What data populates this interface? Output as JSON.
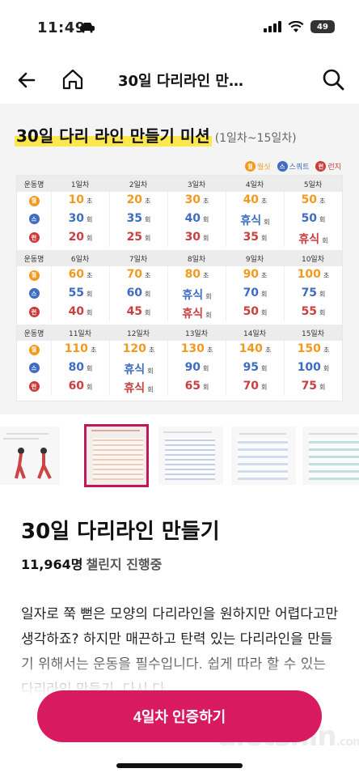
{
  "status_bar": {
    "time": "11:49",
    "battery": "49"
  },
  "nav": {
    "title": "30일 다리라인 만…",
    "icons": [
      "back-arrow-icon",
      "home-icon",
      "search-icon"
    ]
  },
  "image": {
    "title": "30일 다리 라인 만들기 미션",
    "range": "(1일차~15일차)",
    "legend": [
      {
        "badge": "월",
        "label": "월싯",
        "color": "#f39a1e"
      },
      {
        "badge": "스",
        "label": "스쿼트",
        "color": "#3e6cc1"
      },
      {
        "badge": "런",
        "label": "런지",
        "color": "#cc3a3a"
      }
    ],
    "header_label": "운동명",
    "row_badges": [
      "월",
      "스",
      "런"
    ],
    "blocks": [
      {
        "days": [
          {
            "label": "1일차",
            "vals": [
              [
                "10",
                "초"
              ],
              [
                "30",
                "회"
              ],
              [
                "20",
                "회"
              ]
            ]
          },
          {
            "label": "2일차",
            "vals": [
              [
                "20",
                "초"
              ],
              [
                "35",
                "회"
              ],
              [
                "25",
                "회"
              ]
            ]
          },
          {
            "label": "3일차",
            "vals": [
              [
                "30",
                "초"
              ],
              [
                "40",
                "회"
              ],
              [
                "30",
                "회"
              ]
            ]
          },
          {
            "label": "4일차",
            "vals": [
              [
                "40",
                "초"
              ],
              [
                "휴식",
                "회"
              ],
              [
                "35",
                "회"
              ]
            ]
          },
          {
            "label": "5일차",
            "vals": [
              [
                "50",
                "초"
              ],
              [
                "50",
                "회"
              ],
              [
                "휴식",
                "회"
              ]
            ]
          }
        ]
      },
      {
        "days": [
          {
            "label": "6일차",
            "vals": [
              [
                "60",
                "초"
              ],
              [
                "55",
                "회"
              ],
              [
                "40",
                "회"
              ]
            ]
          },
          {
            "label": "7일차",
            "vals": [
              [
                "70",
                "초"
              ],
              [
                "60",
                "회"
              ],
              [
                "45",
                "회"
              ]
            ]
          },
          {
            "label": "8일차",
            "vals": [
              [
                "80",
                "초"
              ],
              [
                "휴식",
                "회"
              ],
              [
                "휴식",
                "회"
              ]
            ]
          },
          {
            "label": "9일차",
            "vals": [
              [
                "90",
                "초"
              ],
              [
                "70",
                "회"
              ],
              [
                "50",
                "회"
              ]
            ]
          },
          {
            "label": "10일차",
            "vals": [
              [
                "100",
                "초"
              ],
              [
                "75",
                "회"
              ],
              [
                "55",
                "회"
              ]
            ]
          }
        ]
      },
      {
        "days": [
          {
            "label": "11일차",
            "vals": [
              [
                "110",
                "초"
              ],
              [
                "80",
                "회"
              ],
              [
                "60",
                "회"
              ]
            ]
          },
          {
            "label": "12일차",
            "vals": [
              [
                "120",
                "초"
              ],
              [
                "휴식",
                "회"
              ],
              [
                "휴식",
                "회"
              ]
            ]
          },
          {
            "label": "13일차",
            "vals": [
              [
                "130",
                "초"
              ],
              [
                "90",
                "회"
              ],
              [
                "65",
                "회"
              ]
            ]
          },
          {
            "label": "14일차",
            "vals": [
              [
                "140",
                "초"
              ],
              [
                "95",
                "회"
              ],
              [
                "70",
                "회"
              ]
            ]
          },
          {
            "label": "15일차",
            "vals": [
              [
                "150",
                "초"
              ],
              [
                "100",
                "회"
              ],
              [
                "75",
                "회"
              ]
            ]
          }
        ]
      }
    ]
  },
  "thumbnails": {
    "count": 5,
    "active_index": 1
  },
  "product": {
    "title": "30일 다리라인 만들기",
    "participants_count": "11,964명",
    "participants_suffix": "챌린지 진행중",
    "description": "일자로 쭉 뻗은 모양의 다리라인을 원하지만 어렵다고만 생각하죠? 하지만 매끈하고 탄력 있는 다리라인을 만들기 위해서는 운동을 필수입니다. 쉽게 따라 할 수 있는 다리라인 만들기, 다시 다"
  },
  "cta": {
    "label": "4일차 인증하기",
    "color": "#d81b60"
  },
  "watermark": {
    "main": "dietshin",
    "suffix": ".com"
  },
  "colors": {
    "orange": "#f39a1e",
    "blue": "#3e6cc1",
    "red": "#cc3a3a"
  }
}
